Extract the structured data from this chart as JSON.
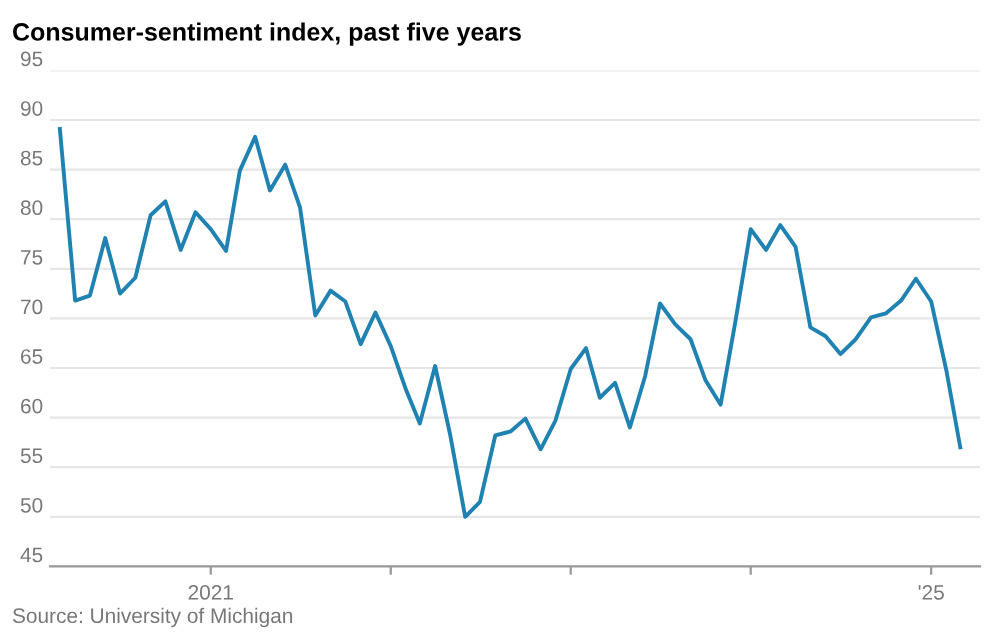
{
  "chart_data": {
    "type": "line",
    "title": "Consumer-sentiment index, past five years",
    "x": [
      "2020-03",
      "2020-04",
      "2020-05",
      "2020-06",
      "2020-07",
      "2020-08",
      "2020-09",
      "2020-10",
      "2020-11",
      "2020-12",
      "2021-01",
      "2021-02",
      "2021-03",
      "2021-04",
      "2021-05",
      "2021-06",
      "2021-07",
      "2021-08",
      "2021-09",
      "2021-10",
      "2021-11",
      "2021-12",
      "2022-01",
      "2022-02",
      "2022-03",
      "2022-04",
      "2022-05",
      "2022-06",
      "2022-07",
      "2022-08",
      "2022-09",
      "2022-10",
      "2022-11",
      "2022-12",
      "2023-01",
      "2023-02",
      "2023-03",
      "2023-04",
      "2023-05",
      "2023-06",
      "2023-07",
      "2023-08",
      "2023-09",
      "2023-10",
      "2023-11",
      "2023-12",
      "2024-01",
      "2024-02",
      "2024-03",
      "2024-04",
      "2024-05",
      "2024-06",
      "2024-07",
      "2024-08",
      "2024-09",
      "2024-10",
      "2024-11",
      "2024-12",
      "2025-01",
      "2025-02",
      "2025-03"
    ],
    "series": [
      {
        "color": "#1f82b0",
        "values": [
          89.1,
          71.8,
          72.3,
          78.1,
          72.5,
          74.1,
          80.4,
          81.8,
          76.9,
          80.7,
          79.0,
          76.8,
          84.9,
          88.3,
          82.9,
          85.5,
          81.2,
          70.3,
          72.8,
          71.7,
          67.4,
          70.6,
          67.2,
          62.8,
          59.4,
          65.2,
          58.4,
          50.0,
          51.5,
          58.2,
          58.6,
          59.9,
          56.8,
          59.7,
          64.9,
          67.0,
          62.0,
          63.5,
          59.0,
          64.2,
          71.5,
          69.4,
          67.9,
          63.8,
          61.3,
          69.7,
          79.0,
          76.9,
          79.4,
          77.2,
          69.1,
          68.2,
          66.4,
          67.9,
          70.1,
          70.5,
          71.8,
          74.0,
          71.7,
          64.7,
          57.0
        ]
      }
    ],
    "xlim": [
      "2020-02-10",
      "2025-04-10"
    ],
    "xticks": [
      {
        "value": "2021-01",
        "label": "2021"
      },
      {
        "value": "2022-01",
        "label": null
      },
      {
        "value": "2023-01",
        "label": null
      },
      {
        "value": "2024-01",
        "label": null
      },
      {
        "value": "2025-01",
        "label": "'25"
      }
    ],
    "ylim": [
      45,
      95
    ],
    "yticks": [
      45,
      50,
      55,
      60,
      65,
      70,
      75,
      80,
      85,
      90,
      95
    ],
    "grid": "y",
    "line_style": "solid",
    "marker": "none",
    "annotations": [
      "Source: University of Michigan"
    ]
  }
}
